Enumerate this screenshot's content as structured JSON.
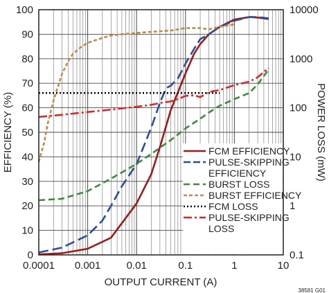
{
  "chart_data": {
    "type": "line",
    "title": "",
    "xlabel": "OUTPUT CURRENT (A)",
    "ylabel": "EFFICIENCY (%)",
    "y2label": "POWER LOSS (mW)",
    "xscale": "log",
    "xlim": [
      0.0001,
      10
    ],
    "ylim": [
      0,
      100
    ],
    "y2scale": "log",
    "y2lim": [
      0.1,
      10000
    ],
    "x_ticks": [
      "0.0001",
      "0.001",
      "0.01",
      "0.1",
      "1",
      "10"
    ],
    "y_ticks": [
      "0",
      "10",
      "20",
      "30",
      "40",
      "50",
      "60",
      "70",
      "80",
      "90",
      "100"
    ],
    "y2_ticks": [
      "0.1",
      "1",
      "10",
      "100",
      "1000",
      "10000"
    ],
    "grid": true,
    "legend_position": "bottom-right",
    "footnote": "38581 G01",
    "series": [
      {
        "name": "FCM EFFICIENCY",
        "axis": "left",
        "color": "#9b1b1b",
        "dash": "solid",
        "x": [
          0.0001,
          0.0003,
          0.001,
          0.003,
          0.01,
          0.02,
          0.03,
          0.05,
          0.1,
          0.15,
          0.2,
          0.3,
          0.5,
          1,
          2,
          3,
          5
        ],
        "y": [
          0.2,
          0.7,
          2.5,
          7,
          21,
          33,
          44,
          59,
          74,
          82,
          86,
          90,
          93,
          96,
          97,
          96.8,
          96.2
        ]
      },
      {
        "name": "PULSE-SKIPPING EFFICIENCY",
        "axis": "left",
        "color": "#2b4c9b",
        "dash": "long-dash",
        "x": [
          0.0001,
          0.0003,
          0.001,
          0.002,
          0.003,
          0.005,
          0.01,
          0.02,
          0.03,
          0.04,
          0.05,
          0.07,
          0.1,
          0.15,
          0.2,
          0.3,
          0.5,
          1,
          2,
          3,
          5
        ],
        "y": [
          1,
          3,
          8,
          14,
          20,
          28,
          37,
          52,
          62,
          68,
          69,
          72,
          78,
          84,
          88,
          90,
          93,
          95.5,
          97,
          97,
          96.5
        ]
      },
      {
        "name": "BURST LOSS",
        "axis": "right",
        "color": "#3c8a3c",
        "dash": "dash",
        "x": [
          0.0001,
          0.0003,
          0.001,
          0.003,
          0.01,
          0.02,
          0.05,
          0.1,
          0.2,
          0.3,
          0.5,
          1,
          2,
          3,
          5
        ],
        "y": [
          1.3,
          1.4,
          2.0,
          3.6,
          7.2,
          11.5,
          22,
          38,
          60,
          80,
          110,
          150,
          200,
          300,
          600
        ]
      },
      {
        "name": "BURST EFFICIENCY",
        "axis": "left",
        "color": "#c08a4a",
        "dash": "short-dash",
        "x": [
          0.0001,
          0.00013,
          0.00015,
          0.0002,
          0.0003,
          0.0004,
          0.0005,
          0.0007,
          0.001,
          0.002,
          0.003,
          0.005,
          0.01,
          0.02,
          0.05,
          0.1,
          0.2,
          0.3,
          0.5,
          1
        ],
        "y": [
          38,
          46,
          53,
          63,
          74,
          79,
          82,
          84.5,
          86.5,
          88.5,
          89.5,
          90,
          90.5,
          91,
          91.5,
          92.5,
          92.5,
          92,
          93,
          94
        ]
      },
      {
        "name": "FCM LOSS",
        "axis": "right",
        "color": "#000000",
        "dash": "dotted",
        "x": [
          0.0001,
          0.0003,
          0.001,
          0.003,
          0.01,
          0.03,
          0.1,
          0.2,
          0.3,
          0.5
        ],
        "y": [
          200,
          200,
          200,
          200,
          200,
          200,
          200,
          200,
          200,
          200
        ]
      },
      {
        "name": "PULSE-SKIPPING LOSS",
        "axis": "right",
        "color": "#d8282b",
        "dash": "dash-dot",
        "x": [
          0.0001,
          0.0003,
          0.001,
          0.003,
          0.01,
          0.02,
          0.03,
          0.05,
          0.07,
          0.1,
          0.15,
          0.2,
          0.3,
          0.5,
          1,
          2,
          3,
          5
        ],
        "y": [
          65,
          72,
          82,
          92,
          105,
          115,
          125,
          135,
          150,
          175,
          180,
          165,
          210,
          230,
          290,
          340,
          420,
          650
        ]
      }
    ]
  }
}
